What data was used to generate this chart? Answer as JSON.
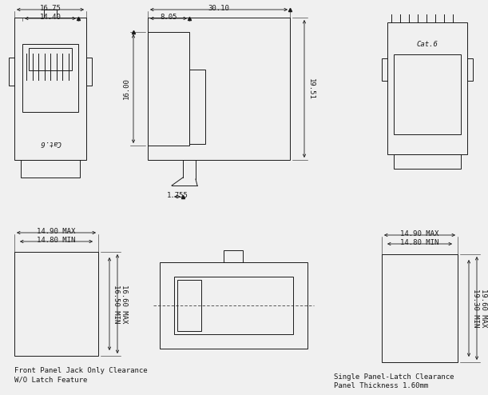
{
  "bg_color": "#f0f0f0",
  "line_color": "#1a1a1a",
  "font_size": 6.5,
  "labels": {
    "front_panel_text1": "Front Panel Jack Only Clearance",
    "front_panel_text2": "W/O Latch Feature",
    "single_panel_text1": "Single Panel-Latch Clearance",
    "single_panel_text2": "Panel Thickness 1.60mm"
  }
}
